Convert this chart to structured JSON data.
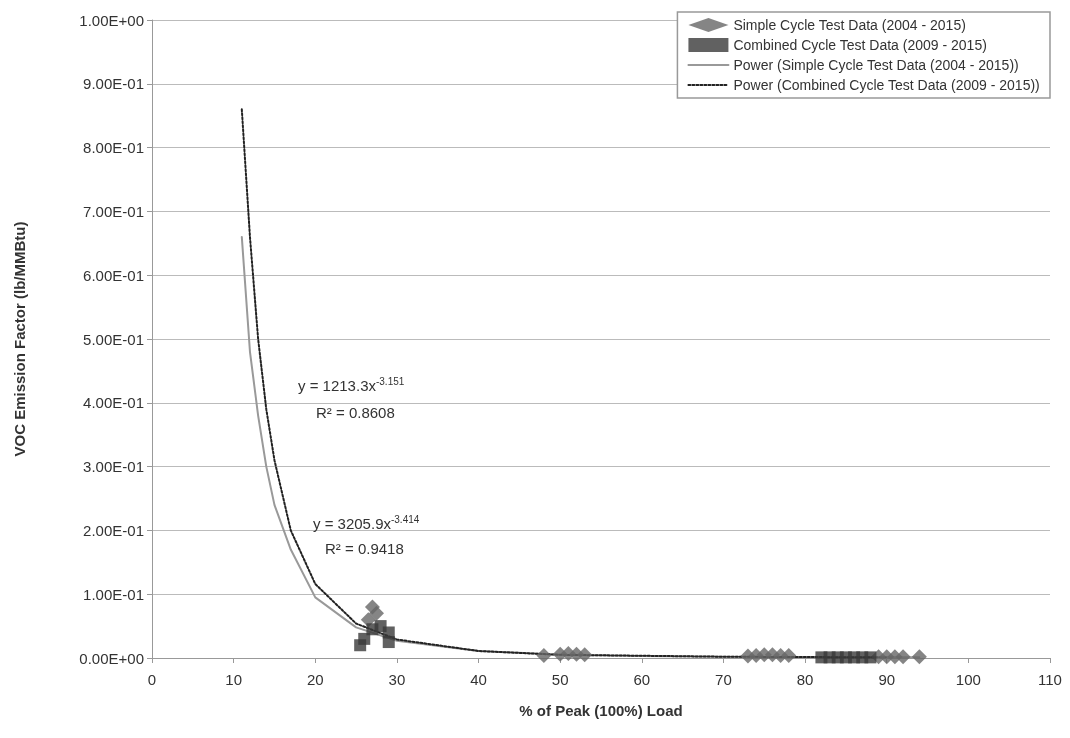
{
  "chart_data": {
    "type": "scatter",
    "xlabel": "% of Peak (100%) Load",
    "ylabel": "VOC Emission Factor (lb/MMBtu)",
    "xlim": [
      0,
      110
    ],
    "xticks": [
      0,
      10,
      20,
      30,
      40,
      50,
      60,
      70,
      80,
      90,
      100,
      110
    ],
    "ylim": [
      0,
      1
    ],
    "yticks": [
      {
        "value": 0,
        "label": "0.00E+00"
      },
      {
        "value": 0.1,
        "label": "1.00E-01"
      },
      {
        "value": 0.2,
        "label": "2.00E-01"
      },
      {
        "value": 0.3,
        "label": "3.00E-01"
      },
      {
        "value": 0.4,
        "label": "4.00E-01"
      },
      {
        "value": 0.5,
        "label": "5.00E-01"
      },
      {
        "value": 0.6,
        "label": "6.00E-01"
      },
      {
        "value": 0.7,
        "label": "7.00E-01"
      },
      {
        "value": 0.8,
        "label": "8.00E-01"
      },
      {
        "value": 0.9,
        "label": "9.00E-01"
      },
      {
        "value": 1,
        "label": "1.00E+00"
      }
    ],
    "grid": "y",
    "legend": "top right",
    "series": [
      {
        "name": "Simple Cycle Test Data (2004 - 2015)",
        "marker": "diamond",
        "color": "#666666",
        "x": [
          26.5,
          27,
          27.5,
          48,
          50,
          51,
          52,
          53,
          73,
          74,
          75,
          76,
          77,
          78,
          89,
          90,
          91,
          92,
          94
        ],
        "values": [
          0.06,
          0.08,
          0.07,
          0.004,
          0.006,
          0.007,
          0.006,
          0.005,
          0.003,
          0.004,
          0.005,
          0.005,
          0.004,
          0.004,
          0.002,
          0.002,
          0.002,
          0.002,
          0.002
        ]
      },
      {
        "name": "Combined Cycle Test Data (2009 - 2015)",
        "marker": "square",
        "color": "#3a3a3a",
        "x": [
          25.5,
          26,
          27,
          28,
          29,
          29,
          82,
          83,
          84,
          85,
          86,
          87,
          88
        ],
        "values": [
          0.02,
          0.03,
          0.045,
          0.05,
          0.04,
          0.025,
          0.001,
          0.001,
          0.001,
          0.001,
          0.001,
          0.001,
          0.001
        ]
      },
      {
        "name": "Power (Simple Cycle Test Data (2004 - 2015))",
        "type": "line",
        "marker": "none",
        "line_style": "solid",
        "color": "#999999",
        "x": [
          11,
          12,
          13,
          14,
          15,
          17,
          20,
          25,
          30,
          40,
          50,
          60,
          70,
          80,
          94
        ],
        "values": [
          0.66,
          0.48,
          0.38,
          0.3,
          0.24,
          0.17,
          0.095,
          0.048,
          0.027,
          0.011,
          0.005,
          0.003,
          0.002,
          0.001,
          0.001
        ]
      },
      {
        "name": "Power (Combined Cycle Test Data (2009 - 2015))",
        "type": "line",
        "marker": "none",
        "line_style": "dotted",
        "color": "#222222",
        "x": [
          11,
          12,
          13,
          14,
          15,
          17,
          20,
          25,
          30,
          40,
          50,
          70,
          90
        ],
        "values": [
          0.86,
          0.66,
          0.5,
          0.39,
          0.31,
          0.2,
          0.116,
          0.054,
          0.029,
          0.011,
          0.005,
          0.002,
          0.001
        ]
      }
    ],
    "annotations": [
      "y = 1213.3x$^{-3.151}$",
      "R² = 0.8608",
      "y = 3205.9x$^{-3.414}$",
      "R² = 0.9418"
    ]
  }
}
